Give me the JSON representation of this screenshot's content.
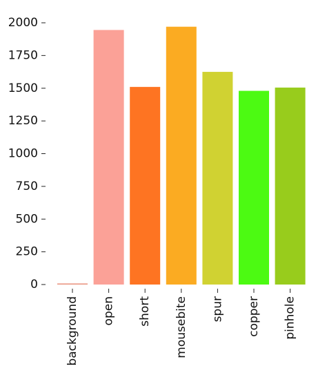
{
  "chart_data": {
    "type": "bar",
    "categories": [
      "background",
      "open",
      "short",
      "mousebite",
      "spur",
      "copper",
      "pinhole"
    ],
    "values": [
      8,
      1945,
      1510,
      1970,
      1625,
      1480,
      1505
    ],
    "colors": [
      "#e8907c",
      "#fba197",
      "#fe7422",
      "#fbab22",
      "#d0d232",
      "#4cfa12",
      "#98cc1c"
    ],
    "title": "",
    "xlabel": "",
    "ylabel": "",
    "ylim": [
      0,
      2000
    ],
    "yticks": [
      0,
      250,
      500,
      750,
      1000,
      1250,
      1500,
      1750,
      2000
    ],
    "ytick_labels": [
      "0",
      "250",
      "500",
      "750",
      "1000",
      "1250",
      "1500",
      "1750",
      "2000"
    ],
    "grid": false,
    "legend": "none"
  }
}
